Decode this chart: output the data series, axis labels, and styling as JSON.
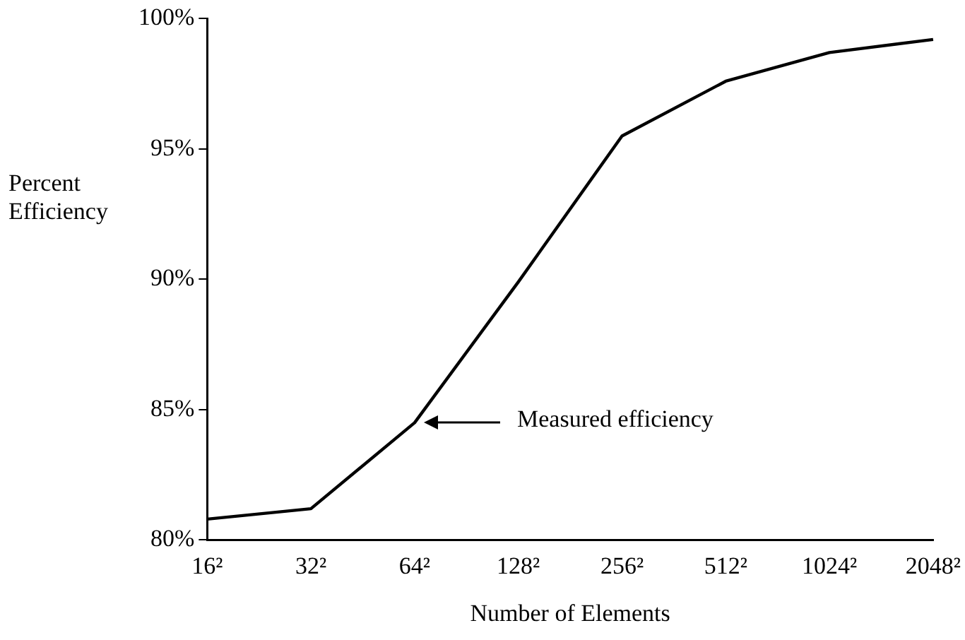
{
  "chart_data": {
    "type": "line",
    "xlabel": "Number of Elements",
    "ylabel": "Percent Efficiency",
    "categories": [
      "16²",
      "32²",
      "64²",
      "128²",
      "256²",
      "512²",
      "1024²",
      "2048²"
    ],
    "series": [
      {
        "color": "#000000",
        "values": [
          80.8,
          81.2,
          84.5,
          89.9,
          95.5,
          97.6,
          98.7,
          99.2
        ]
      }
    ],
    "ylim": [
      80,
      100
    ],
    "yticks": [
      {
        "value": 80,
        "label": "80%"
      },
      {
        "value": 85,
        "label": "85%"
      },
      {
        "value": 90,
        "label": "90%"
      },
      {
        "value": 95,
        "label": "95%"
      },
      {
        "value": 100,
        "label": "100%"
      }
    ],
    "annotations": [
      "Measured efficiency"
    ],
    "grid": false,
    "legend": false,
    "marker": "none",
    "line_style": "solid"
  }
}
